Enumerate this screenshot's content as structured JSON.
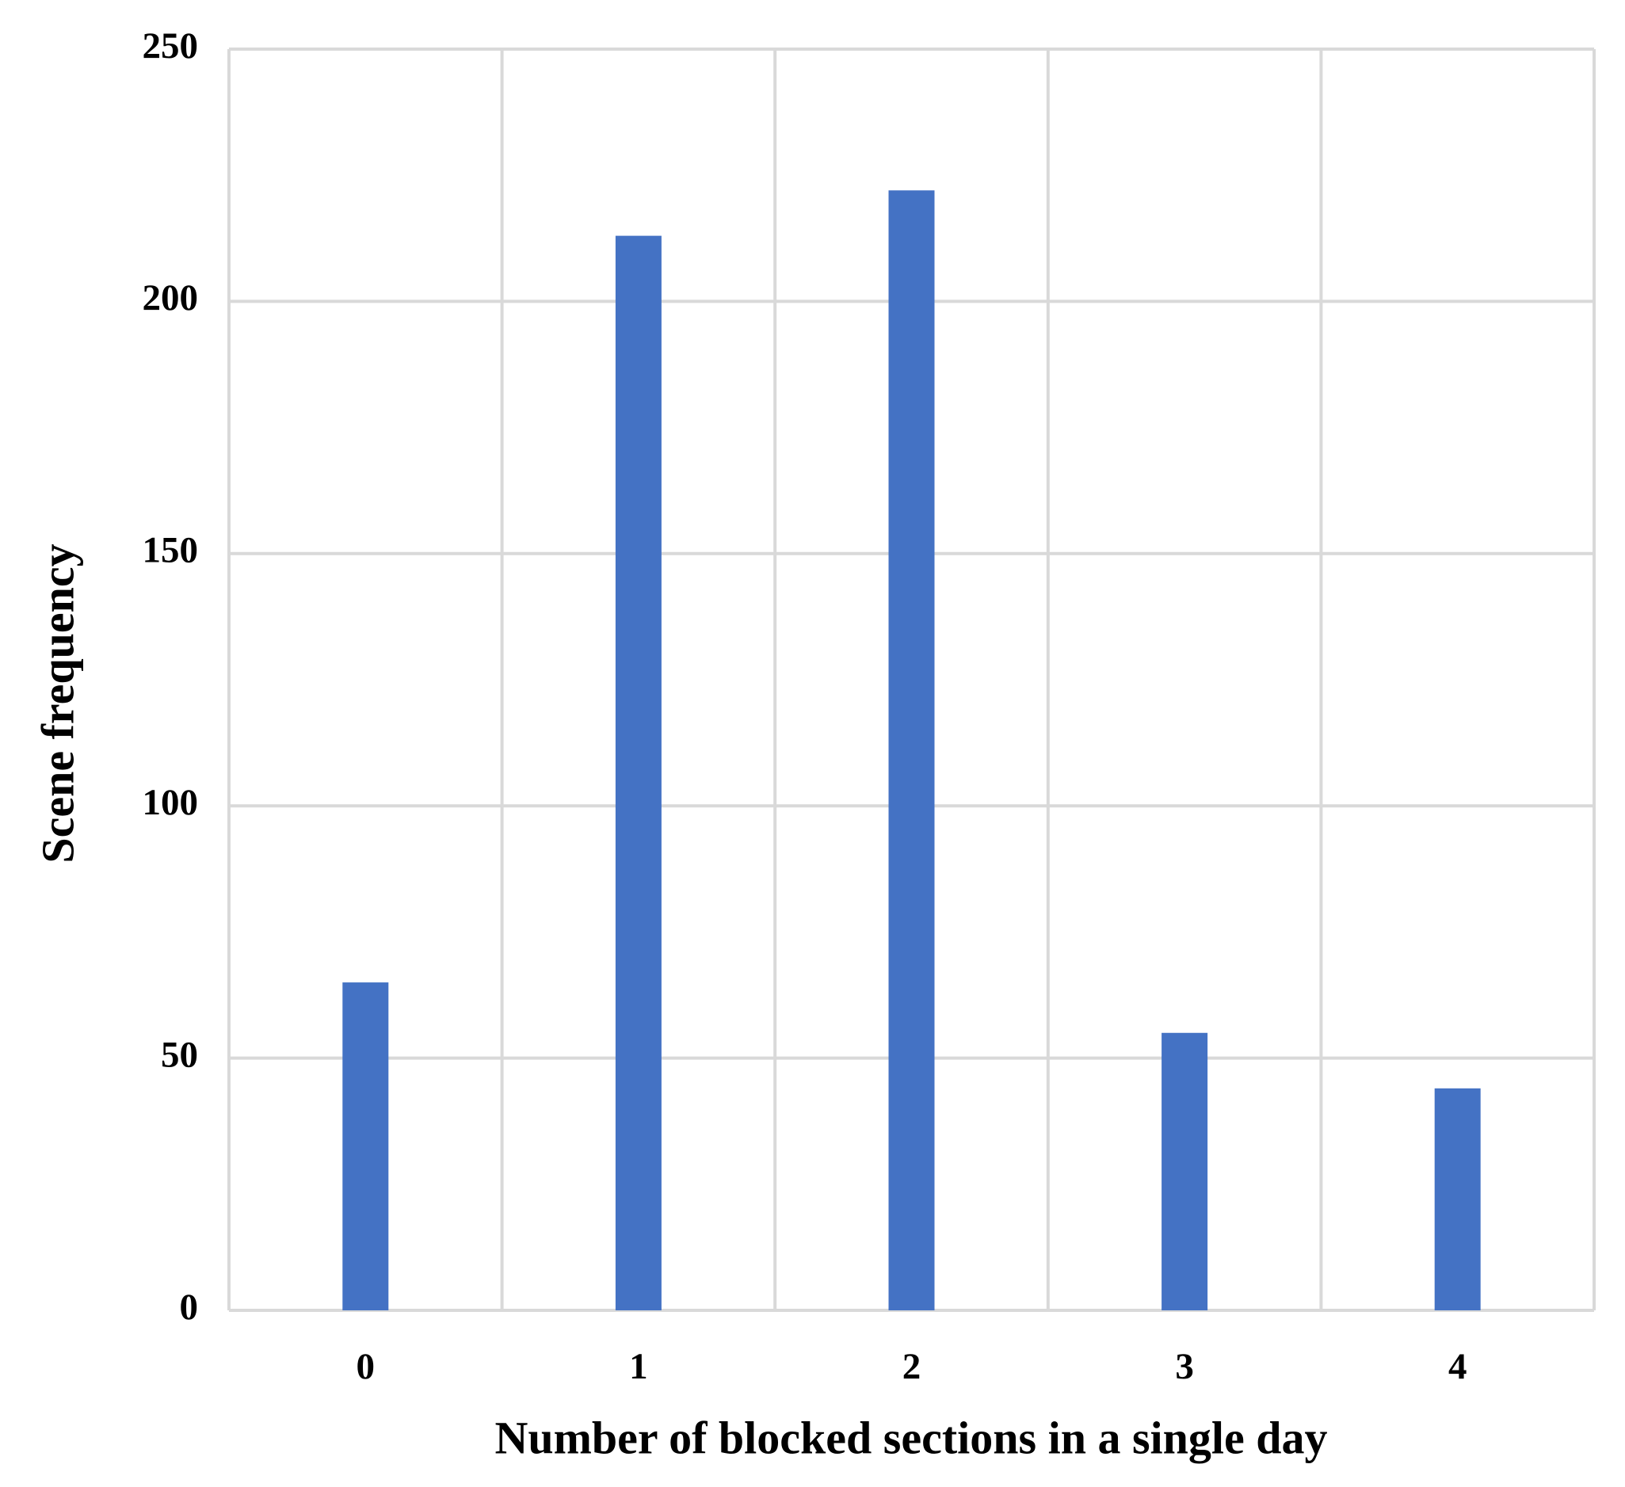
{
  "chart_data": {
    "type": "bar",
    "x_label": "Number of blocked sections in a single day",
    "y_label": "Scene frequency",
    "categories": [
      "0",
      "1",
      "2",
      "3",
      "4"
    ],
    "values": [
      65,
      213,
      222,
      55,
      44
    ],
    "color": "#4472c4",
    "ylim": [
      0,
      250
    ],
    "yticks": [
      0,
      50,
      100,
      150,
      200,
      250
    ],
    "grid": true
  }
}
